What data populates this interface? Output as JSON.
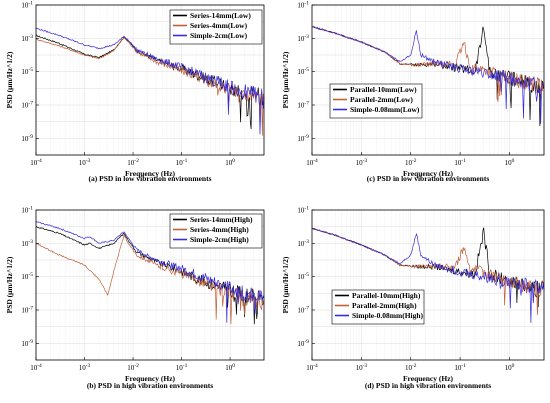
{
  "chart_data": [
    {
      "id": "a",
      "type": "line",
      "caption": "(a) PSD in low vibration environments",
      "xlabel": "Frequency (Hz)",
      "ylabel": "PSD (μm/Hz^1/2)",
      "xscale": "log",
      "yscale": "log",
      "xlim": [
        0.0001,
        5
      ],
      "ylim": [
        1e-10,
        0.1
      ],
      "x_ticks": [
        "10^-4",
        "10^-3",
        "10^-2",
        "10^-1",
        "10^0"
      ],
      "y_ticks": [
        "10^-9",
        "10^-7",
        "10^-5",
        "10^-3",
        "10^-1"
      ],
      "grid": true,
      "legend_position": "top-right",
      "series": [
        {
          "name": "Series-14mm(Low)",
          "color": "#000000",
          "points": [
            [
              0.0001,
              0.0015
            ],
            [
              0.0003,
              0.0005
            ],
            [
              0.001,
              0.00011
            ],
            [
              0.002,
              7e-05
            ],
            [
              0.004,
              0.0002
            ],
            [
              0.0065,
              0.0012
            ],
            [
              0.008,
              0.0007
            ],
            [
              0.012,
              0.00018
            ],
            [
              0.03,
              5e-05
            ],
            [
              0.1,
              1.5e-05
            ],
            [
              0.3,
              4e-06
            ],
            [
              1,
              1e-06
            ],
            [
              5,
              3e-07
            ]
          ]
        },
        {
          "name": "Series-4mm(Low)",
          "color": "#c0603a",
          "points": [
            [
              0.0001,
              0.0009
            ],
            [
              0.0003,
              0.00035
            ],
            [
              0.001,
              0.0001
            ],
            [
              0.002,
              6e-05
            ],
            [
              0.004,
              0.00018
            ],
            [
              0.0065,
              0.0011
            ],
            [
              0.008,
              0.0006
            ],
            [
              0.012,
              0.00015
            ],
            [
              0.03,
              4e-05
            ],
            [
              0.1,
              1.2e-05
            ],
            [
              0.3,
              3e-06
            ],
            [
              1,
              8e-07
            ],
            [
              5,
              2e-07
            ]
          ]
        },
        {
          "name": "Simple-2cm(Low)",
          "color": "#3a2bd8",
          "points": [
            [
              0.0001,
              0.004
            ],
            [
              0.0003,
              0.0015
            ],
            [
              0.001,
              0.0004
            ],
            [
              0.002,
              0.00025
            ],
            [
              0.004,
              0.0004
            ],
            [
              0.0065,
              0.0013
            ],
            [
              0.008,
              0.0008
            ],
            [
              0.012,
              0.0002
            ],
            [
              0.03,
              6e-05
            ],
            [
              0.1,
              1.8e-05
            ],
            [
              0.3,
              5e-06
            ],
            [
              1,
              1.2e-06
            ],
            [
              5,
              3e-07
            ]
          ]
        }
      ]
    },
    {
      "id": "c",
      "type": "line",
      "caption": "(c) PSD in low vibration environments",
      "xlabel": "Frequency (Hz)",
      "ylabel": "PSD (μm/Hz^1/2)",
      "xscale": "log",
      "yscale": "log",
      "xlim": [
        0.0001,
        5
      ],
      "ylim": [
        1e-10,
        0.1
      ],
      "x_ticks": [
        "10^-4",
        "10^-3",
        "10^-2",
        "10^-1",
        "10^0"
      ],
      "y_ticks": [
        "10^-9",
        "10^-7",
        "10^-5",
        "10^-3",
        "10^-1"
      ],
      "grid": true,
      "legend_position": "bottom-left",
      "series": [
        {
          "name": "Parallel-10mm(Low)",
          "color": "#000000",
          "points": [
            [
              0.0001,
              0.005
            ],
            [
              0.0003,
              0.002
            ],
            [
              0.001,
              0.0006
            ],
            [
              0.003,
              0.00015
            ],
            [
              0.006,
              3e-05
            ],
            [
              0.013,
              2.5e-05
            ],
            [
              0.03,
              3e-05
            ],
            [
              0.1,
              1.5e-05
            ],
            [
              0.2,
              1e-05
            ],
            [
              0.3,
              0.004
            ],
            [
              0.4,
              1e-05
            ],
            [
              1,
              4e-06
            ],
            [
              5,
              1e-06
            ]
          ]
        },
        {
          "name": "Parallel-2mm(Low)",
          "color": "#c0603a",
          "points": [
            [
              0.0001,
              0.005
            ],
            [
              0.0003,
              0.002
            ],
            [
              0.001,
              0.0006
            ],
            [
              0.003,
              0.00015
            ],
            [
              0.006,
              3e-05
            ],
            [
              0.013,
              2.5e-05
            ],
            [
              0.03,
              3e-05
            ],
            [
              0.08,
              3e-05
            ],
            [
              0.12,
              0.0005
            ],
            [
              0.16,
              2e-05
            ],
            [
              0.4,
              1e-05
            ],
            [
              1,
              4e-06
            ],
            [
              5,
              1e-06
            ]
          ]
        },
        {
          "name": "Simple-0.08mm(Low)",
          "color": "#3a2bd8",
          "points": [
            [
              0.0001,
              0.005
            ],
            [
              0.0003,
              0.002
            ],
            [
              0.001,
              0.0006
            ],
            [
              0.003,
              0.00015
            ],
            [
              0.006,
              4e-05
            ],
            [
              0.01,
              0.0001
            ],
            [
              0.013,
              0.003
            ],
            [
              0.016,
              0.0001
            ],
            [
              0.03,
              4e-05
            ],
            [
              0.1,
              1.5e-05
            ],
            [
              0.3,
              8e-06
            ],
            [
              1,
              4e-06
            ],
            [
              5,
              1e-06
            ]
          ]
        }
      ]
    },
    {
      "id": "b",
      "type": "line",
      "caption": "(b) PSD in high vibration environments",
      "xlabel": "Frequency (Hz)",
      "ylabel": "PSD (μm/Hz^1/2)",
      "xscale": "log",
      "yscale": "log",
      "xlim": [
        0.0001,
        5
      ],
      "ylim": [
        1e-10,
        0.1
      ],
      "x_ticks": [
        "10^-4",
        "10^-3",
        "10^-2",
        "10^-1",
        "10^0"
      ],
      "y_ticks": [
        "10^-9",
        "10^-7",
        "10^-5",
        "10^-3",
        "10^-1"
      ],
      "grid": true,
      "legend_position": "top-right",
      "series": [
        {
          "name": "Series-14mm(High)",
          "color": "#000000",
          "points": [
            [
              0.0001,
              0.01
            ],
            [
              0.0003,
              0.004
            ],
            [
              0.001,
              0.0008
            ],
            [
              0.0013,
              0.001
            ],
            [
              0.002,
              0.0005
            ],
            [
              0.004,
              0.001
            ],
            [
              0.0065,
              0.004
            ],
            [
              0.008,
              0.0015
            ],
            [
              0.012,
              0.0003
            ],
            [
              0.03,
              8e-05
            ],
            [
              0.1,
              2e-05
            ],
            [
              0.3,
              5e-06
            ],
            [
              1,
              1.5e-06
            ],
            [
              5,
              4e-07
            ]
          ]
        },
        {
          "name": "Series-4mm(High)",
          "color": "#c0603a",
          "points": [
            [
              0.0001,
              0.001
            ],
            [
              0.0003,
              0.0002
            ],
            [
              0.001,
              5e-05
            ],
            [
              0.002,
              7e-06
            ],
            [
              0.003,
              8e-07
            ],
            [
              0.004,
              2e-05
            ],
            [
              0.0065,
              0.003
            ],
            [
              0.008,
              0.001
            ],
            [
              0.012,
              0.0002
            ],
            [
              0.03,
              5e-05
            ],
            [
              0.1,
              1.5e-05
            ],
            [
              0.3,
              4e-06
            ],
            [
              1,
              1e-06
            ],
            [
              5,
              3e-07
            ]
          ]
        },
        {
          "name": "Simple-2cm(High)",
          "color": "#3a2bd8",
          "points": [
            [
              0.0001,
              0.02
            ],
            [
              0.0003,
              0.008
            ],
            [
              0.001,
              0.002
            ],
            [
              0.0013,
              0.0025
            ],
            [
              0.002,
              0.001
            ],
            [
              0.004,
              0.0015
            ],
            [
              0.0065,
              0.005
            ],
            [
              0.008,
              0.002
            ],
            [
              0.012,
              0.0004
            ],
            [
              0.03,
              0.0001
            ],
            [
              0.1,
              3e-05
            ],
            [
              0.3,
              8e-06
            ],
            [
              1,
              2e-06
            ],
            [
              5,
              5e-07
            ]
          ]
        }
      ]
    },
    {
      "id": "d",
      "type": "line",
      "caption": "(d) PSD in high vibration environments",
      "xlabel": "Frequency (Hz)",
      "ylabel": "PSD (μm/Hz^1/2)",
      "xscale": "log",
      "yscale": "log",
      "xlim": [
        0.0001,
        5
      ],
      "ylim": [
        1e-10,
        0.1
      ],
      "x_ticks": [
        "10^-4",
        "10^-3",
        "10^-2",
        "10^-1",
        "10^0"
      ],
      "y_ticks": [
        "10^-9",
        "10^-7",
        "10^-5",
        "10^-3",
        "10^-1"
      ],
      "grid": true,
      "legend_position": "bottom-right",
      "series": [
        {
          "name": "Parallel-10mm(High)",
          "color": "#000000",
          "points": [
            [
              0.0001,
              0.008
            ],
            [
              0.0003,
              0.003
            ],
            [
              0.001,
              0.0008
            ],
            [
              0.003,
              0.0002
            ],
            [
              0.006,
              5e-05
            ],
            [
              0.013,
              4e-05
            ],
            [
              0.03,
              4e-05
            ],
            [
              0.1,
              2e-05
            ],
            [
              0.2,
              1.5e-05
            ],
            [
              0.3,
              0.005
            ],
            [
              0.4,
              1.5e-05
            ],
            [
              1,
              5e-06
            ],
            [
              5,
              1.5e-06
            ]
          ]
        },
        {
          "name": "Parallel-2mm(High)",
          "color": "#c0603a",
          "points": [
            [
              0.0001,
              0.008
            ],
            [
              0.0003,
              0.003
            ],
            [
              0.001,
              0.0008
            ],
            [
              0.003,
              0.0002
            ],
            [
              0.006,
              5e-05
            ],
            [
              0.013,
              4e-05
            ],
            [
              0.03,
              4e-05
            ],
            [
              0.08,
              4e-05
            ],
            [
              0.12,
              0.0006
            ],
            [
              0.16,
              3e-05
            ],
            [
              0.4,
              1.5e-05
            ],
            [
              1,
              5e-06
            ],
            [
              5,
              1.5e-06
            ]
          ]
        },
        {
          "name": "Simple-0.08mm(High)",
          "color": "#3a2bd8",
          "points": [
            [
              0.0001,
              0.008
            ],
            [
              0.0003,
              0.003
            ],
            [
              0.001,
              0.0008
            ],
            [
              0.003,
              0.0002
            ],
            [
              0.006,
              6e-05
            ],
            [
              0.01,
              0.0002
            ],
            [
              0.013,
              0.004
            ],
            [
              0.016,
              0.0002
            ],
            [
              0.03,
              5e-05
            ],
            [
              0.1,
              2e-05
            ],
            [
              0.3,
              1e-05
            ],
            [
              1,
              5e-06
            ],
            [
              5,
              1.5e-06
            ]
          ]
        }
      ]
    }
  ]
}
